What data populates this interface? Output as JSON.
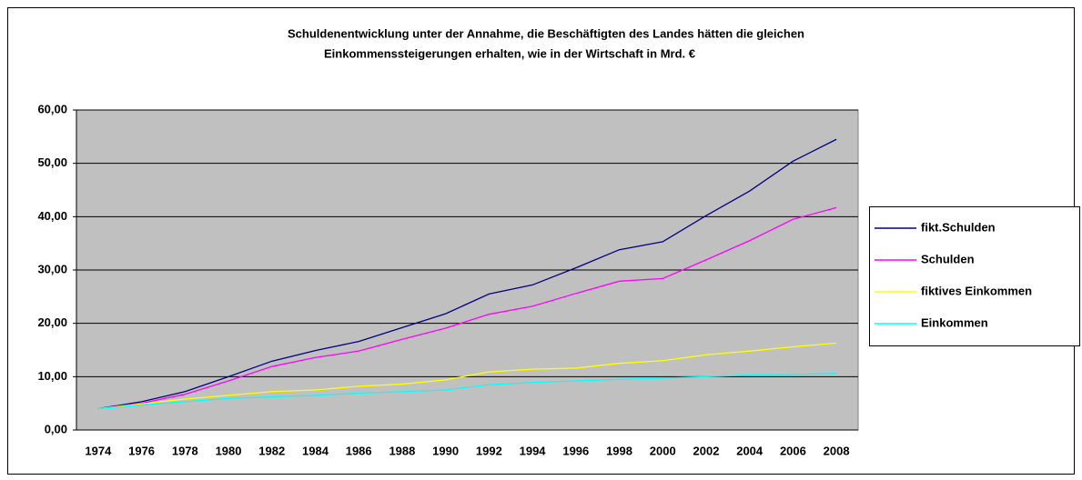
{
  "chart_data": {
    "type": "line",
    "title": [
      "Schuldenentwicklung unter der Annahme, die Beschäftigten des Landes hätten die gleichen",
      "Einkommenssteigerungen erhalten, wie in der Wirtschaft in Mrd. €"
    ],
    "categories": [
      "1974",
      "1976",
      "1978",
      "1980",
      "1982",
      "1984",
      "1986",
      "1988",
      "1990",
      "1992",
      "1994",
      "1996",
      "1998",
      "2000",
      "2002",
      "2004",
      "2006",
      "2008"
    ],
    "series": [
      {
        "name": "fikt.Schulden",
        "color": "#000080",
        "values": [
          4.0,
          5.3,
          7.2,
          10.0,
          12.9,
          14.9,
          16.6,
          19.2,
          21.8,
          25.5,
          27.2,
          30.4,
          33.8,
          35.3,
          40.2,
          44.8,
          50.4,
          54.5
        ]
      },
      {
        "name": "Schulden",
        "color": "#ff00ff",
        "values": [
          4.0,
          5.0,
          6.7,
          9.2,
          11.9,
          13.6,
          14.8,
          17.0,
          19.1,
          21.7,
          23.2,
          25.6,
          27.9,
          28.4,
          31.9,
          35.5,
          39.5,
          41.7
        ]
      },
      {
        "name": "fiktives Einkommen",
        "color": "#ffff00",
        "values": [
          4.0,
          4.9,
          5.8,
          6.5,
          7.2,
          7.5,
          8.2,
          8.6,
          9.4,
          10.9,
          11.4,
          11.6,
          12.5,
          13.0,
          14.1,
          14.8,
          15.6,
          16.3
        ]
      },
      {
        "name": "Einkommen",
        "color": "#00ffff",
        "values": [
          4.0,
          4.7,
          5.3,
          5.9,
          6.2,
          6.5,
          6.9,
          7.2,
          7.5,
          8.5,
          8.9,
          9.2,
          9.5,
          9.7,
          10.0,
          10.3,
          10.4,
          10.6
        ]
      }
    ],
    "ylim": [
      0,
      60
    ],
    "yticks": [
      {
        "value": 0,
        "label": "0,00"
      },
      {
        "value": 10,
        "label": "10,00"
      },
      {
        "value": 20,
        "label": "20,00"
      },
      {
        "value": 30,
        "label": "30,00"
      },
      {
        "value": 40,
        "label": "40,00"
      },
      {
        "value": 50,
        "label": "50,00"
      },
      {
        "value": 60,
        "label": "60,00"
      }
    ],
    "grid": true,
    "plot_background": "#c0c0c0",
    "legend": "right"
  }
}
